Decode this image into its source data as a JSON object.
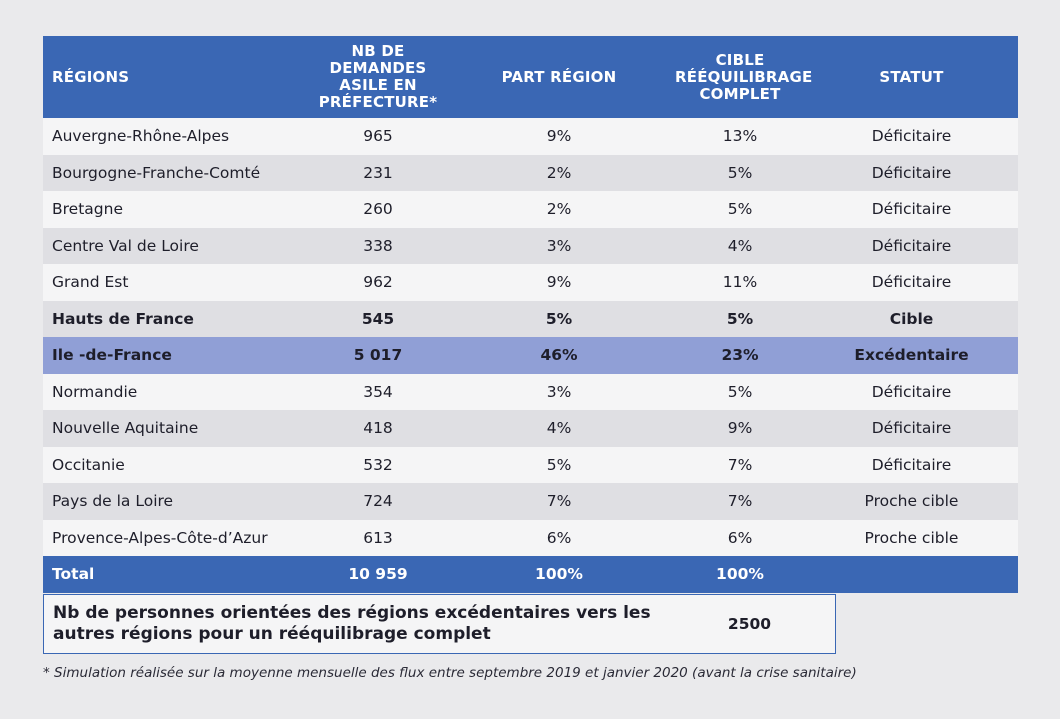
{
  "header": {
    "regions": "RÉGIONS",
    "demandes": "NB DE DEMANDES ASILE EN PRÉFECTURE*",
    "part": "PART RÉGION",
    "cible": "CIBLE RÉÉQUILIBRAGE COMPLET",
    "statut": "STATUT"
  },
  "rows": [
    {
      "region": "Auvergne-Rhône-Alpes",
      "demandes": "965",
      "part": "9%",
      "cible": "13%",
      "statut": "Déficitaire"
    },
    {
      "region": "Bourgogne-Franche-Comté",
      "demandes": "231",
      "part": "2%",
      "cible": "5%",
      "statut": "Déficitaire"
    },
    {
      "region": "Bretagne",
      "demandes": "260",
      "part": "2%",
      "cible": "5%",
      "statut": "Déficitaire"
    },
    {
      "region": "Centre Val de Loire",
      "demandes": "338",
      "part": "3%",
      "cible": "4%",
      "statut": "Déficitaire"
    },
    {
      "region": "Grand Est",
      "demandes": "962",
      "part": "9%",
      "cible": "11%",
      "statut": "Déficitaire"
    },
    {
      "region": "Hauts de France",
      "demandes": "545",
      "part": "5%",
      "cible": "5%",
      "statut": "Cible"
    },
    {
      "region": "Ile -de-France",
      "demandes": "5 017",
      "part": "46%",
      "cible": "23%",
      "statut": "Excédentaire"
    },
    {
      "region": "Normandie",
      "demandes": "354",
      "part": "3%",
      "cible": "5%",
      "statut": "Déficitaire"
    },
    {
      "region": "Nouvelle Aquitaine",
      "demandes": "418",
      "part": "4%",
      "cible": "9%",
      "statut": "Déficitaire"
    },
    {
      "region": "Occitanie",
      "demandes": "532",
      "part": "5%",
      "cible": "7%",
      "statut": "Déficitaire"
    },
    {
      "region": "Pays de la Loire",
      "demandes": "724",
      "part": "7%",
      "cible": "7%",
      "statut": "Proche cible"
    },
    {
      "region": "Provence-Alpes-Côte-d’Azur",
      "demandes": "613",
      "part": "6%",
      "cible": "6%",
      "statut": "Proche cible"
    }
  ],
  "total": {
    "label": "Total",
    "demandes": "10 959",
    "part": "100%",
    "cible": "100%"
  },
  "summary": {
    "label": "Nb de personnes orientées des régions excédentaires vers les autres régions pour un rééquilibrage complet",
    "value": "2500"
  },
  "footnote": "* Simulation réalisée sur la moyenne mensuelle des flux entre septembre 2019 et janvier 2020 (avant la crise sanitaire)"
}
